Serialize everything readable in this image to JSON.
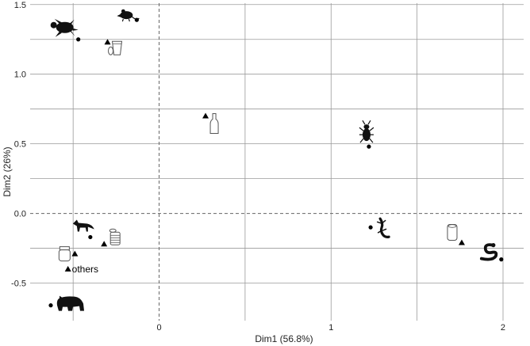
{
  "chart_data": {
    "type": "scatter",
    "xlabel": "Dim1 (56.8%)",
    "ylabel": "Dim2 (26%)",
    "xlim": [
      -0.75,
      2.12
    ],
    "ylim": [
      -0.77,
      1.51
    ],
    "x_ticks": [
      {
        "value": 0,
        "label": "0"
      },
      {
        "value": 1,
        "label": "1"
      },
      {
        "value": 2,
        "label": "2"
      }
    ],
    "y_ticks": [
      {
        "value": -0.5,
        "label": "-0.5"
      },
      {
        "value": 0.0,
        "label": "0.0"
      },
      {
        "value": 0.5,
        "label": "0.5"
      },
      {
        "value": 1.0,
        "label": "1.0"
      },
      {
        "value": 1.5,
        "label": "1.5"
      }
    ],
    "x_minor_grid": [
      -0.5,
      0.5,
      1.5
    ],
    "y_minor_grid": [
      -0.25,
      0.25,
      0.75,
      1.25
    ],
    "reference_lines": {
      "x": 0,
      "y": 0,
      "style": "dashed"
    },
    "grid": true,
    "series": [
      {
        "marker": "circle",
        "points": [
          {
            "x": -0.47,
            "y": 1.25,
            "icon": "turtle"
          },
          {
            "x": -0.13,
            "y": 1.39,
            "icon": "mouse"
          },
          {
            "x": 1.22,
            "y": 0.48,
            "icon": "beetle"
          },
          {
            "x": -0.4,
            "y": -0.17,
            "icon": "fox"
          },
          {
            "x": 1.23,
            "y": -0.1,
            "icon": "lizard"
          },
          {
            "x": 1.99,
            "y": -0.33,
            "icon": "snake"
          },
          {
            "x": -0.63,
            "y": -0.66,
            "icon": "bear"
          }
        ]
      },
      {
        "marker": "triangle",
        "points": [
          {
            "x": -0.3,
            "y": 1.23,
            "icon": "cup",
            "label": ""
          },
          {
            "x": 0.27,
            "y": 0.7,
            "icon": "bottle",
            "label": ""
          },
          {
            "x": -0.32,
            "y": -0.22,
            "icon": "tin-can",
            "label": ""
          },
          {
            "x": -0.49,
            "y": -0.29,
            "icon": "jar",
            "label": ""
          },
          {
            "x": -0.53,
            "y": -0.4,
            "icon": "",
            "label": "others"
          },
          {
            "x": 1.76,
            "y": -0.21,
            "icon": "soda-can",
            "label": ""
          }
        ]
      }
    ]
  },
  "colors": {
    "grid": "#9a9a9a",
    "reference": "#666666",
    "marker": "#000000",
    "icon_dark": "#111111",
    "icon_light": "#ffffff",
    "icon_outline": "#555555"
  }
}
